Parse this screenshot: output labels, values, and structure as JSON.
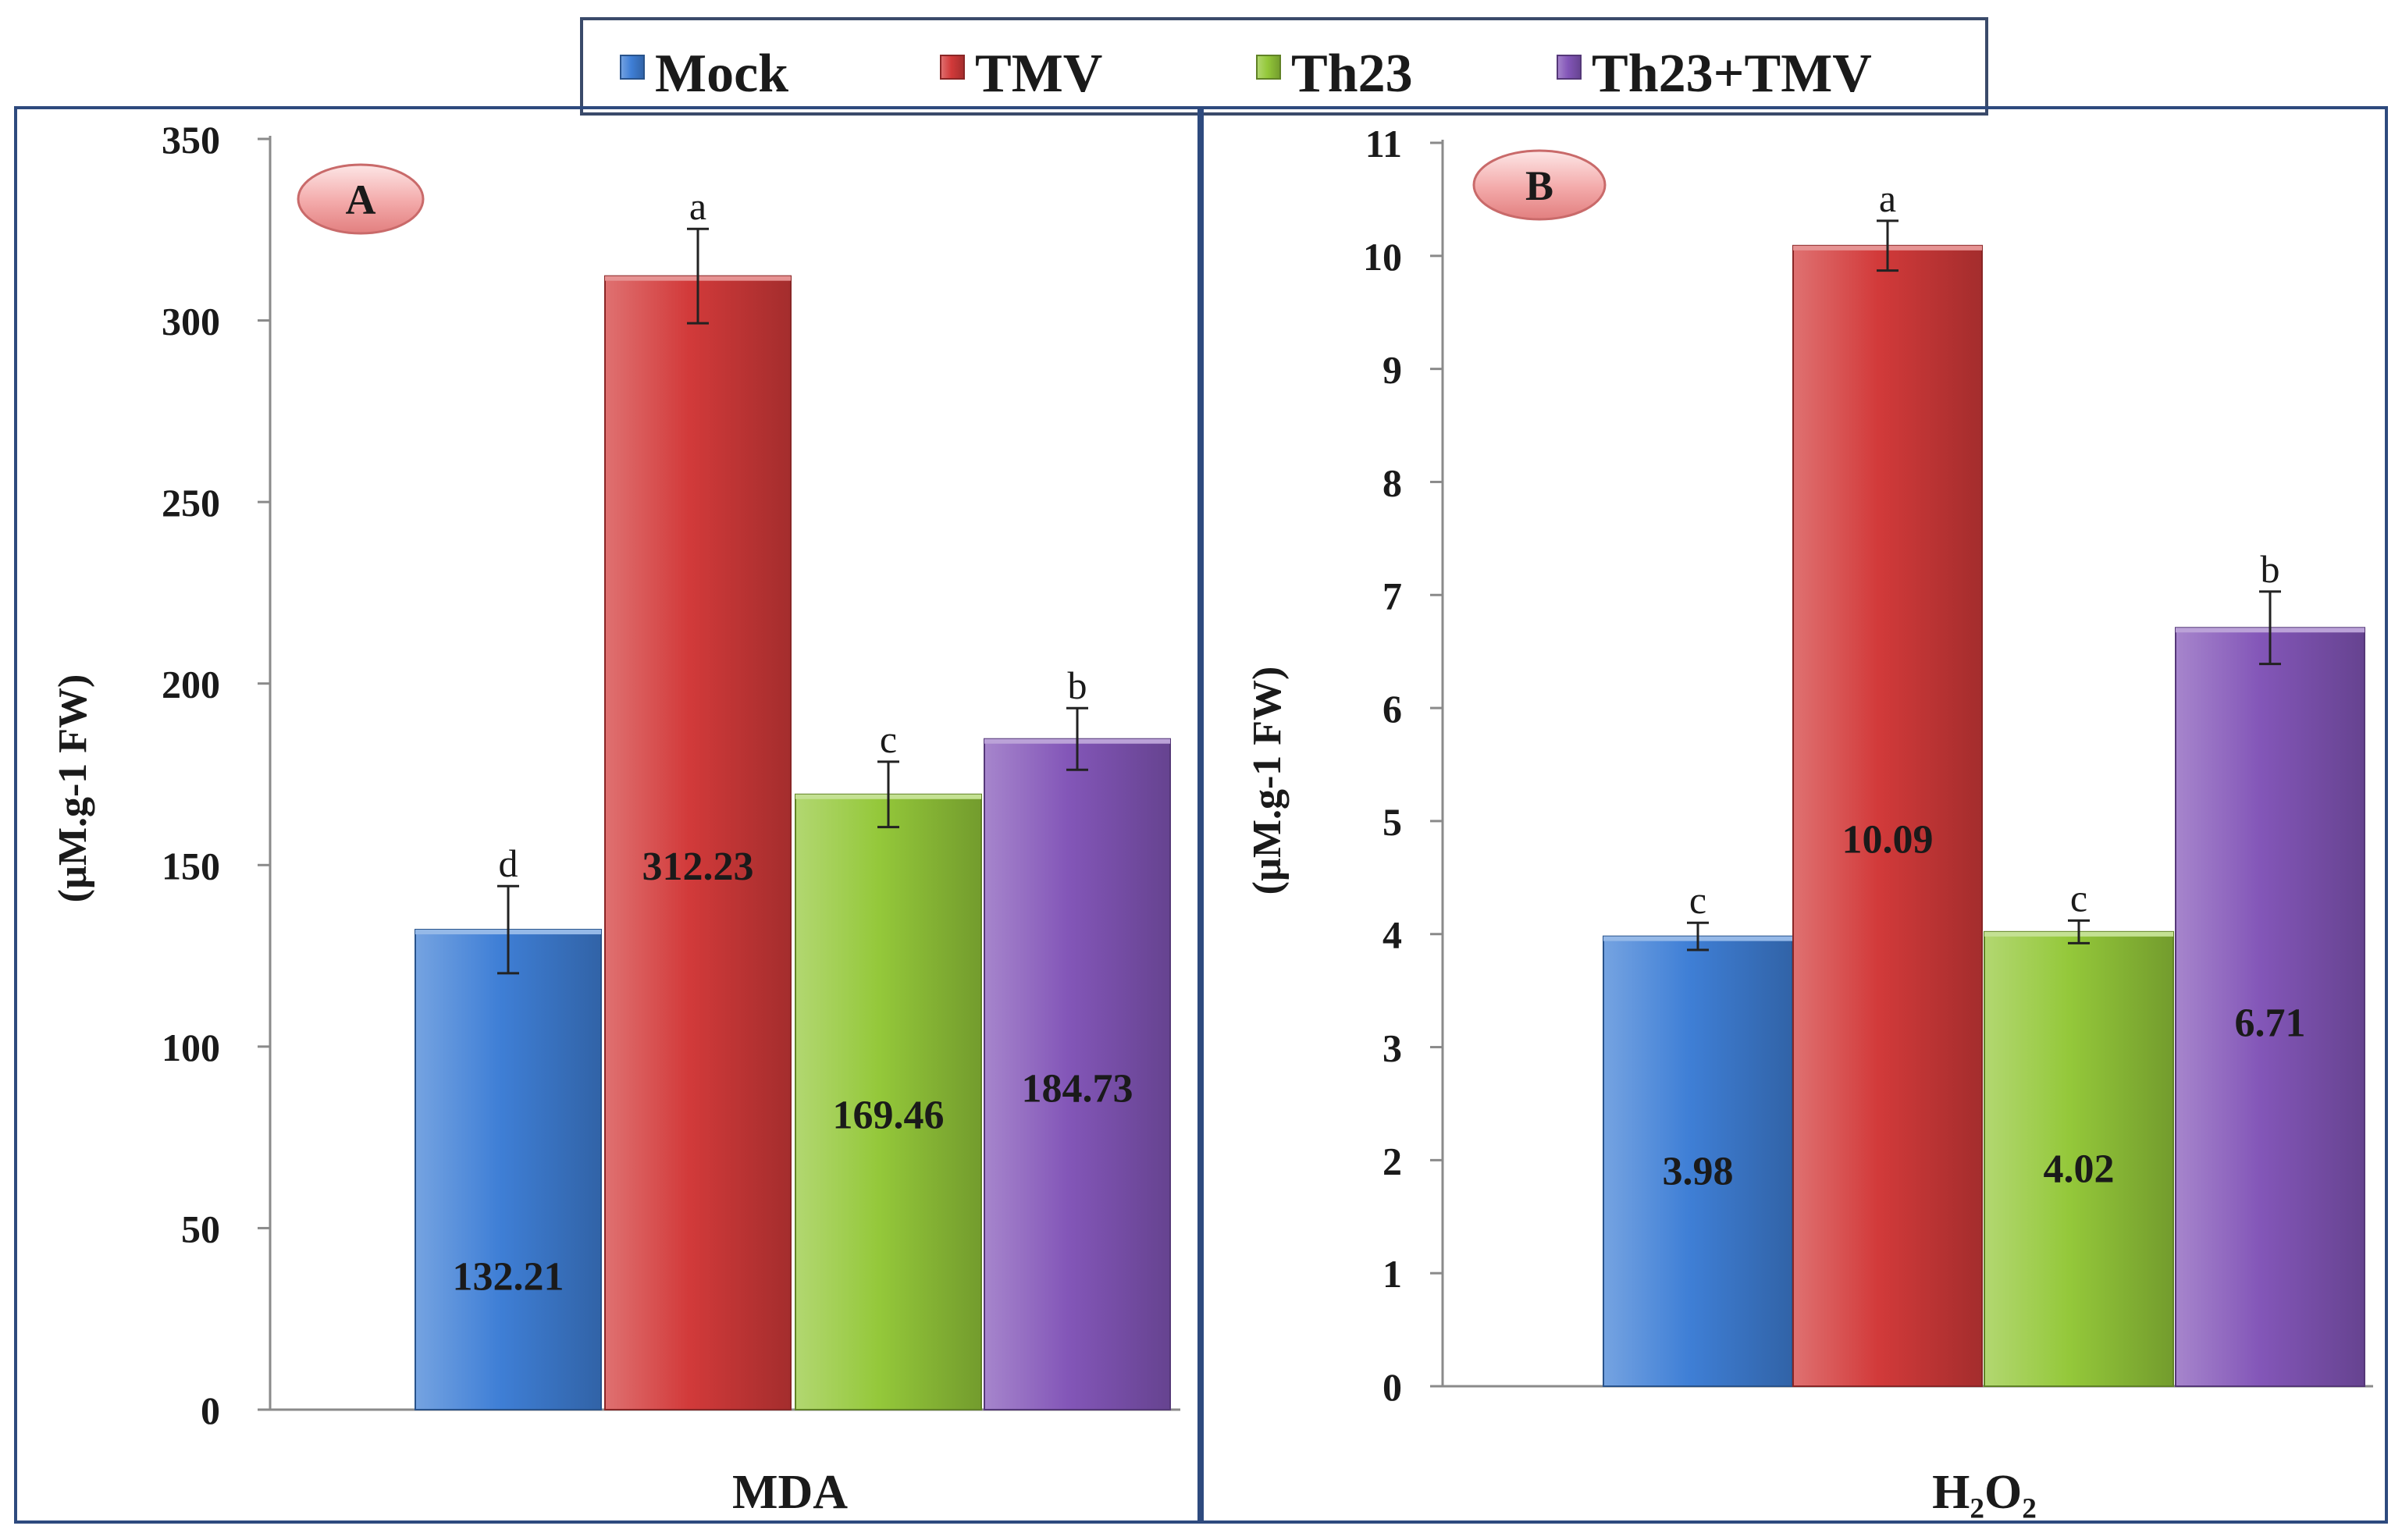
{
  "legend": {
    "items": [
      {
        "label": "Mock",
        "color": "#3f7fd6"
      },
      {
        "label": "TMV",
        "color": "#d23a3a"
      },
      {
        "label": "Th23",
        "color": "#94c83a"
      },
      {
        "label": "Th23+TMV",
        "color": "#8356b8"
      }
    ]
  },
  "chart_data": [
    {
      "type": "bar",
      "panel_label": "A",
      "xlabel": "MDA",
      "ylabel": "(µM.g-1 FW)",
      "ylim": [
        0,
        350
      ],
      "yticks": [
        0,
        50,
        100,
        150,
        200,
        250,
        300,
        350
      ],
      "categories": [
        "Mock",
        "TMV",
        "Th23",
        "Th23+TMV"
      ],
      "values": [
        132.21,
        312.23,
        169.46,
        184.73
      ],
      "value_labels": [
        "132.21",
        "312.23",
        "169.46",
        "184.73"
      ],
      "errors": [
        12,
        13,
        9,
        8.5
      ],
      "significance": [
        "d",
        "a",
        "c",
        "b"
      ]
    },
    {
      "type": "bar",
      "panel_label": "B",
      "xlabel": "H₂O₂",
      "ylabel": "(µM.g-1 FW)",
      "ylim": [
        0,
        11
      ],
      "yticks": [
        0,
        1,
        2,
        3,
        4,
        5,
        6,
        7,
        8,
        9,
        10,
        11
      ],
      "categories": [
        "Mock",
        "TMV",
        "Th23",
        "Th23+TMV"
      ],
      "values": [
        3.98,
        10.09,
        4.02,
        6.71
      ],
      "value_labels": [
        "3.98",
        "10.09",
        "4.02",
        "6.71"
      ],
      "errors": [
        0.12,
        0.22,
        0.1,
        0.32
      ],
      "significance": [
        "c",
        "a",
        "c",
        "b"
      ]
    }
  ]
}
